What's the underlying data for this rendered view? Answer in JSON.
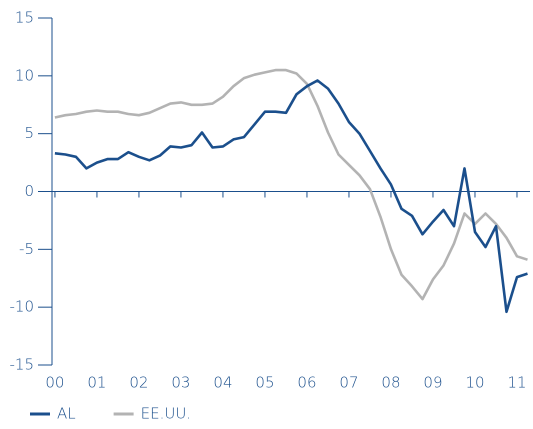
{
  "chart_data": {
    "type": "line",
    "x": [
      2000,
      2000.25,
      2000.5,
      2000.75,
      2001,
      2001.25,
      2001.5,
      2001.75,
      2002,
      2002.25,
      2002.5,
      2002.75,
      2003,
      2003.25,
      2003.5,
      2003.75,
      2004,
      2004.25,
      2004.5,
      2004.75,
      2005,
      2005.25,
      2005.5,
      2005.75,
      2006,
      2006.25,
      2006.5,
      2006.75,
      2007,
      2007.25,
      2007.5,
      2007.75,
      2008,
      2008.25,
      2008.5,
      2008.75,
      2009,
      2009.25,
      2009.5,
      2009.75,
      2010,
      2010.25,
      2010.5,
      2010.75,
      2011,
      2011.25
    ],
    "series": [
      {
        "name": "AL",
        "color": "#1b4f8c",
        "values": [
          3.3,
          3.2,
          3.0,
          2.0,
          2.5,
          2.8,
          2.8,
          3.4,
          3.0,
          2.7,
          3.1,
          3.9,
          3.8,
          4.0,
          5.1,
          3.8,
          3.9,
          4.5,
          4.7,
          5.8,
          6.9,
          6.9,
          6.8,
          8.4,
          9.1,
          9.6,
          8.9,
          7.6,
          6.0,
          5.0,
          3.5,
          2.0,
          0.6,
          -1.5,
          -2.1,
          -3.7,
          -2.6,
          -1.6,
          -3.0,
          2.0,
          -3.5,
          -4.8,
          -3.0,
          -10.4,
          -7.4,
          -7.1
        ]
      },
      {
        "name": "EE.UU.",
        "color": "#b3b3b3",
        "values": [
          6.4,
          6.6,
          6.7,
          6.9,
          7.0,
          6.9,
          6.9,
          6.7,
          6.6,
          6.8,
          7.2,
          7.6,
          7.7,
          7.5,
          7.5,
          7.6,
          8.2,
          9.1,
          9.8,
          10.1,
          10.3,
          10.5,
          10.5,
          10.2,
          9.3,
          7.4,
          5.1,
          3.2,
          2.3,
          1.4,
          0.2,
          -2.2,
          -5.0,
          -7.2,
          -8.2,
          -9.3,
          -7.6,
          -6.4,
          -4.5,
          -1.9,
          -2.8,
          -1.9,
          -2.8,
          -4.0,
          -5.6,
          -5.9
        ]
      }
    ],
    "xlim": [
      1999.93,
      2011.31
    ],
    "xticks": [
      {
        "value": 2000,
        "label": "00"
      },
      {
        "value": 2001,
        "label": "01"
      },
      {
        "value": 2002,
        "label": "02"
      },
      {
        "value": 2003,
        "label": "03"
      },
      {
        "value": 2004,
        "label": "04"
      },
      {
        "value": 2005,
        "label": "05"
      },
      {
        "value": 2006,
        "label": "06"
      },
      {
        "value": 2007,
        "label": "07"
      },
      {
        "value": 2008,
        "label": "08"
      },
      {
        "value": 2009,
        "label": "09"
      },
      {
        "value": 2010,
        "label": "10"
      },
      {
        "value": 2011,
        "label": "11"
      }
    ],
    "ylim": [
      -15,
      15
    ],
    "yticks": [
      15,
      10,
      5,
      0,
      -5,
      -10,
      -15
    ],
    "legend": "bottom-left"
  }
}
